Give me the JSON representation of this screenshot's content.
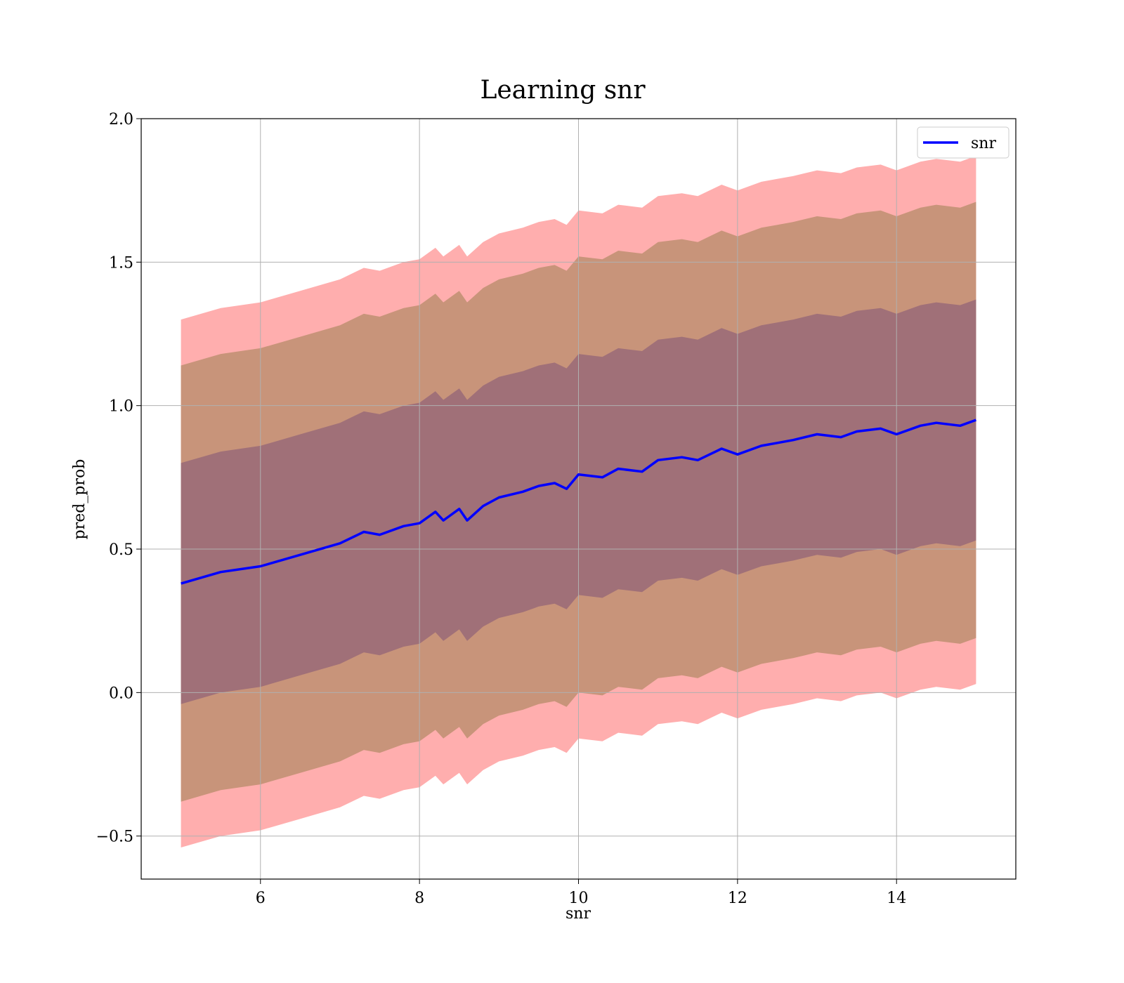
{
  "chart_data": {
    "type": "line",
    "title": "Learning snr",
    "xlabel": "snr",
    "ylabel": "pred_prob",
    "xlim": [
      4.5,
      15.5
    ],
    "ylim": [
      -0.65,
      2.0
    ],
    "xticks": [
      6,
      8,
      10,
      12,
      14
    ],
    "yticks": [
      -0.5,
      0.0,
      0.5,
      1.0,
      1.5,
      2.0
    ],
    "xtick_labels": [
      "6",
      "8",
      "10",
      "12",
      "14"
    ],
    "ytick_labels": [
      "−0.5",
      "0.0",
      "0.5",
      "1.0",
      "1.5",
      "2.0"
    ],
    "grid": true,
    "legend_position": "top-right",
    "series": [
      {
        "name": "snr",
        "color": "#0000ff",
        "x": [
          5.0,
          5.5,
          6.0,
          6.5,
          7.0,
          7.3,
          7.5,
          7.8,
          8.0,
          8.2,
          8.3,
          8.5,
          8.6,
          8.8,
          9.0,
          9.3,
          9.5,
          9.7,
          9.85,
          10.0,
          10.3,
          10.5,
          10.8,
          11.0,
          11.3,
          11.5,
          11.8,
          12.0,
          12.3,
          12.5,
          12.7,
          13.0,
          13.3,
          13.5,
          13.8,
          14.0,
          14.3,
          14.5,
          14.8,
          15.0
        ],
        "y": [
          0.38,
          0.42,
          0.44,
          0.48,
          0.52,
          0.56,
          0.55,
          0.58,
          0.59,
          0.63,
          0.6,
          0.64,
          0.6,
          0.65,
          0.68,
          0.7,
          0.72,
          0.73,
          0.71,
          0.76,
          0.75,
          0.78,
          0.77,
          0.81,
          0.82,
          0.81,
          0.85,
          0.83,
          0.86,
          0.87,
          0.88,
          0.9,
          0.89,
          0.91,
          0.92,
          0.9,
          0.93,
          0.94,
          0.93,
          0.95
        ],
        "band_offsets": [
          0.42,
          0.76,
          0.92
        ],
        "band_colors": [
          "#a07078",
          "#c8947a",
          "#ffaeae"
        ]
      }
    ]
  }
}
